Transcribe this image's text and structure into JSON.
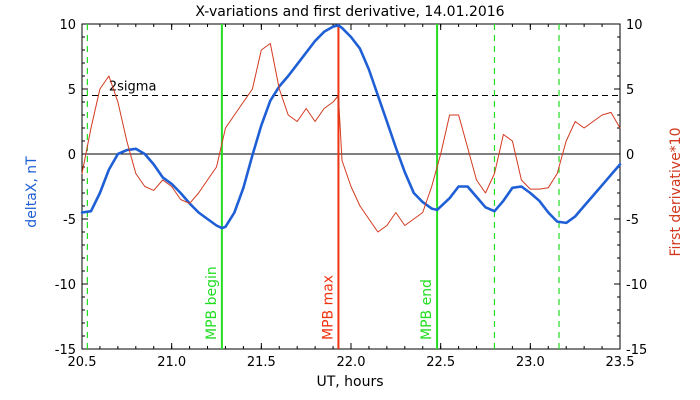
{
  "chart_data": {
    "type": "line",
    "title": "X-variations and first derivative, 14.01.2016",
    "xlabel": "UT, hours",
    "ylabel_left": "deltaX, nT",
    "ylabel_right": "First derivative*10",
    "xlim": [
      20.5,
      23.5
    ],
    "ylim": [
      -15,
      10
    ],
    "x_ticks": [
      "20.5",
      "21.0",
      "21.5",
      "22.0",
      "22.5",
      "23.0",
      "23.5"
    ],
    "y_ticks": [
      "10",
      "5",
      "0",
      "-5",
      "-10",
      "-15"
    ],
    "colors": {
      "deltaX": "#1f5fd6",
      "derivative": "#d23a20",
      "mpb_marker": "#22dd22",
      "mpb_max": "#ee3311"
    },
    "series": [
      {
        "name": "deltaX",
        "x": [
          20.5,
          20.55,
          20.6,
          20.65,
          20.7,
          20.75,
          20.8,
          20.85,
          20.9,
          20.95,
          21.0,
          21.05,
          21.1,
          21.15,
          21.2,
          21.25,
          21.28,
          21.3,
          21.35,
          21.4,
          21.45,
          21.5,
          21.55,
          21.6,
          21.65,
          21.7,
          21.75,
          21.8,
          21.85,
          21.9,
          21.93,
          21.95,
          22.0,
          22.05,
          22.1,
          22.15,
          22.2,
          22.25,
          22.3,
          22.35,
          22.4,
          22.45,
          22.48,
          22.55,
          22.6,
          22.65,
          22.7,
          22.75,
          22.8,
          22.85,
          22.9,
          22.95,
          23.0,
          23.05,
          23.1,
          23.15,
          23.2,
          23.25,
          23.3,
          23.35,
          23.4,
          23.45,
          23.5
        ],
        "values": [
          -4.5,
          -4.4,
          -3.0,
          -1.2,
          0.0,
          0.3,
          0.4,
          0.0,
          -0.8,
          -1.8,
          -2.3,
          -3.0,
          -3.8,
          -4.5,
          -5.0,
          -5.5,
          -5.7,
          -5.6,
          -4.5,
          -2.6,
          -0.1,
          2.2,
          4.1,
          5.2,
          6.0,
          6.9,
          7.8,
          8.7,
          9.4,
          9.8,
          9.9,
          9.7,
          9.0,
          8.1,
          6.5,
          4.5,
          2.5,
          0.5,
          -1.4,
          -3.0,
          -3.7,
          -4.2,
          -4.3,
          -3.4,
          -2.5,
          -2.5,
          -3.3,
          -4.1,
          -4.4,
          -3.6,
          -2.6,
          -2.5,
          -3.0,
          -3.6,
          -4.5,
          -5.2,
          -5.3,
          -4.8,
          -4.0,
          -3.2,
          -2.4,
          -1.6,
          -0.8
        ]
      },
      {
        "name": "derivative",
        "x": [
          20.5,
          20.55,
          20.6,
          20.65,
          20.7,
          20.75,
          20.8,
          20.85,
          20.9,
          20.95,
          21.0,
          21.05,
          21.1,
          21.15,
          21.2,
          21.25,
          21.3,
          21.35,
          21.4,
          21.45,
          21.5,
          21.55,
          21.6,
          21.65,
          21.7,
          21.75,
          21.8,
          21.85,
          21.9,
          21.93,
          21.95,
          22.0,
          22.05,
          22.1,
          22.15,
          22.2,
          22.25,
          22.3,
          22.35,
          22.4,
          22.45,
          22.5,
          22.55,
          22.6,
          22.65,
          22.7,
          22.75,
          22.8,
          22.85,
          22.9,
          22.95,
          23.0,
          23.05,
          23.1,
          23.15,
          23.2,
          23.25,
          23.3,
          23.35,
          23.4,
          23.45,
          23.5
        ],
        "values": [
          -1.5,
          2.0,
          5.0,
          6.0,
          4.0,
          1.0,
          -1.5,
          -2.5,
          -2.8,
          -2.0,
          -2.5,
          -3.5,
          -3.8,
          -3.0,
          -2.0,
          -1.0,
          2.0,
          3.0,
          4.0,
          5.0,
          8.0,
          8.5,
          5.0,
          3.0,
          2.5,
          3.5,
          2.5,
          3.5,
          4.0,
          4.5,
          -0.5,
          -2.5,
          -4.0,
          -5.0,
          -6.0,
          -5.5,
          -4.5,
          -5.5,
          -5.0,
          -4.5,
          -2.5,
          0.0,
          3.0,
          3.0,
          0.5,
          -2.0,
          -3.0,
          -1.5,
          1.5,
          1.0,
          -2.0,
          -2.7,
          -2.7,
          -2.6,
          -1.5,
          1.0,
          2.5,
          2.0,
          2.5,
          3.0,
          3.2,
          2.0
        ]
      }
    ],
    "reference_lines": [
      {
        "label": "2sigma",
        "y": 4.5,
        "style": "dashed",
        "color": "#000000"
      },
      {
        "label": "",
        "y": 0,
        "style": "solid",
        "color": "#000000"
      }
    ],
    "vertical_markers": [
      {
        "label": "",
        "x": 20.53,
        "style": "dashed",
        "color": "#22dd22"
      },
      {
        "label": "MPB begin",
        "x": 21.28,
        "style": "solid",
        "color": "#22dd22"
      },
      {
        "label": "MPB max",
        "x": 21.93,
        "style": "solid",
        "color": "#ee3311"
      },
      {
        "label": "MPB end",
        "x": 22.48,
        "style": "solid",
        "color": "#22dd22"
      },
      {
        "label": "",
        "x": 22.8,
        "style": "dashed",
        "color": "#22dd22"
      },
      {
        "label": "",
        "x": 23.16,
        "style": "dashed",
        "color": "#22dd22"
      }
    ]
  }
}
